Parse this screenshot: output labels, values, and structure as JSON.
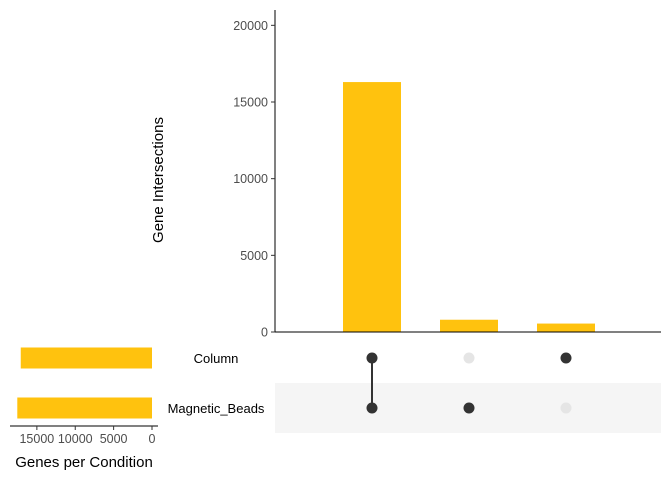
{
  "chart_data": {
    "type": "bar",
    "intersections": {
      "ylabel": "Gene Intersections",
      "ylim": [
        0,
        21000
      ],
      "yticks": [
        0,
        5000,
        10000,
        15000,
        20000
      ],
      "ytick_labels": [
        "0",
        "5000",
        "10000",
        "15000",
        "20000"
      ],
      "categories": [
        [
          "Column",
          "Magnetic_Beads"
        ],
        [
          "Magnetic_Beads"
        ],
        [
          "Column"
        ]
      ],
      "values": [
        16300,
        800,
        550
      ],
      "color": "#FFC20E"
    },
    "set_sizes": {
      "xlabel": "Genes per Condition",
      "xlim": [
        18500,
        0
      ],
      "xticks": [
        15000,
        10000,
        5000,
        0
      ],
      "xtick_labels": [
        "15000",
        "10000",
        "5000",
        "0"
      ],
      "sets": [
        "Column",
        "Magnetic_Beads"
      ],
      "values": [
        17100,
        17550
      ],
      "color": "#FFC20E"
    },
    "matrix_colors": {
      "active": "#333333",
      "inactive": "#e5e5e5",
      "stripe": "#f5f5f5"
    }
  }
}
